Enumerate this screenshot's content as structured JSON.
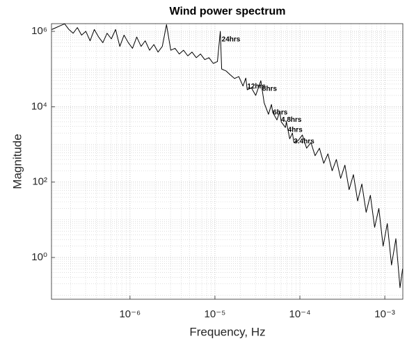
{
  "chart_data": {
    "type": "line",
    "title": "Wind power spectrum",
    "xlabel": "Frequency, Hz",
    "ylabel": "Magnitude",
    "xscale": "log",
    "yscale": "log",
    "grid": true,
    "minor_grid": true,
    "color": "#000000",
    "xlim": [
      1.19e-07,
      0.00163
    ],
    "ylim": [
      0.078,
      1600000.0
    ],
    "xticks": [
      {
        "value": 1e-06,
        "label": "10⁻⁶"
      },
      {
        "value": 1e-05,
        "label": "10⁻⁵"
      },
      {
        "value": 0.0001,
        "label": "10⁻⁴"
      },
      {
        "value": 0.001,
        "label": "10⁻³"
      }
    ],
    "yticks": [
      {
        "value": 1,
        "label": "10⁰"
      },
      {
        "value": 100,
        "label": "10²"
      },
      {
        "value": 10000,
        "label": "10⁴"
      },
      {
        "value": 1000000,
        "label": "10⁶"
      }
    ],
    "xminorticks": [
      2e-07,
      3e-07,
      4e-07,
      5e-07,
      6e-07,
      7e-07,
      8e-07,
      9e-07,
      2e-06,
      3e-06,
      4e-06,
      5e-06,
      6e-06,
      7e-06,
      8e-06,
      9e-06,
      2e-05,
      3e-05,
      4e-05,
      5e-05,
      6e-05,
      7e-05,
      8e-05,
      9e-05,
      0.0002,
      0.0003,
      0.0004,
      0.0005,
      0.0006,
      0.0007,
      0.0008,
      0.0009
    ],
    "yminorticks": [
      0.1,
      0.2,
      0.3,
      0.4,
      0.5,
      0.6,
      0.7,
      0.8,
      0.9,
      2,
      3,
      4,
      5,
      6,
      7,
      8,
      9,
      10,
      20,
      30,
      40,
      50,
      60,
      70,
      80,
      90,
      200,
      300,
      400,
      500,
      600,
      700,
      800,
      900,
      1000,
      2000,
      3000,
      4000,
      5000,
      6000,
      7000,
      8000,
      9000,
      20000,
      30000,
      40000,
      50000,
      60000,
      70000,
      80000,
      90000,
      100000,
      200000,
      300000,
      400000,
      500000,
      600000,
      700000,
      800000,
      900000
    ],
    "x": [
      1.2e-07,
      1.35e-07,
      1.51e-07,
      1.7e-07,
      1.91e-07,
      2.14e-07,
      2.4e-07,
      2.69e-07,
      3.02e-07,
      3.39e-07,
      3.8e-07,
      4.27e-07,
      4.79e-07,
      5.37e-07,
      6.03e-07,
      6.76e-07,
      7.59e-07,
      8.51e-07,
      9.55e-07,
      1.07e-06,
      1.2e-06,
      1.35e-06,
      1.51e-06,
      1.7e-06,
      1.91e-06,
      2.14e-06,
      2.4e-06,
      2.69e-06,
      3.02e-06,
      3.39e-06,
      3.8e-06,
      4.27e-06,
      4.79e-06,
      5.37e-06,
      6.03e-06,
      6.76e-06,
      7.59e-06,
      8.51e-06,
      9.55e-06,
      1.07e-05,
      1.157e-05,
      1.2e-05,
      1.35e-05,
      1.51e-05,
      1.7e-05,
      1.91e-05,
      2.14e-05,
      2.31e-05,
      2.4e-05,
      2.69e-05,
      3.02e-05,
      3.47e-05,
      3.8e-05,
      4.27e-05,
      4.63e-05,
      4.79e-05,
      5.37e-05,
      5.79e-05,
      6.03e-05,
      6.76e-05,
      6.94e-05,
      7.59e-05,
      8.17e-05,
      8.51e-05,
      9.55e-05,
      0.000107,
      0.00012,
      0.000135,
      0.000151,
      0.00017,
      0.000191,
      0.000214,
      0.00024,
      0.000269,
      0.000302,
      0.000339,
      0.00038,
      0.000427,
      0.000479,
      0.000537,
      0.000603,
      0.000676,
      0.000759,
      0.000851,
      0.000955,
      0.00107,
      0.0012,
      0.00135,
      0.00151,
      0.00162
    ],
    "values": [
      1120000.0,
      1260000.0,
      1410000.0,
      1580000.0,
      1120000.0,
      891000.0,
      1260000.0,
      794000.0,
      1000000.0,
      562000.0,
      1120000.0,
      708000.0,
      501000.0,
      891000.0,
      631000.0,
      1120000.0,
      398000.0,
      794000.0,
      501000.0,
      355000.0,
      708000.0,
      398000.0,
      562000.0,
      316000.0,
      447000.0,
      282000.0,
      398000.0,
      1510000.0,
      316000.0,
      355000.0,
      251000.0,
      316000.0,
      224000.0,
      282000.0,
      200000.0,
      251000.0,
      178000.0,
      200000.0,
      141000.0,
      158000.0,
      1000000.0,
      100000.0,
      89100.0,
      70800.0,
      56200.0,
      63100.0,
      35500.0,
      57500.0,
      28200.0,
      31600.0,
      20000.0,
      49000.0,
      12600.0,
      6310.0,
      11500.0,
      7080.0,
      4470.0,
      7410.0,
      3980.0,
      2820.0,
      3980.0,
      1410.0,
      2000.0,
      1120.0,
      1260.0,
      1780.0,
      794,
      1120,
      501,
      794,
      316,
      562,
      200,
      398,
      126,
      282,
      63.1,
      158,
      31.6,
      89.1,
      15.8,
      44.7,
      6.31,
      20,
      2,
      7.94,
      0.631,
      3.16,
      0.158,
      0.501
    ],
    "annotations": [
      {
        "text": "24hrs",
        "x": 1.157e-05,
        "y": 1000000.0
      },
      {
        "text": "12hrs",
        "x": 2.31e-05,
        "y": 57500.0
      },
      {
        "text": "8hrs",
        "x": 3.47e-05,
        "y": 49000.0
      },
      {
        "text": "6hrs",
        "x": 4.63e-05,
        "y": 11500.0
      },
      {
        "text": "4.8hrs",
        "x": 5.79e-05,
        "y": 7410.0
      },
      {
        "text": "4hrs",
        "x": 6.94e-05,
        "y": 3980.0
      },
      {
        "text": "3.4hrs",
        "x": 8.17e-05,
        "y": 2000.0
      }
    ]
  }
}
